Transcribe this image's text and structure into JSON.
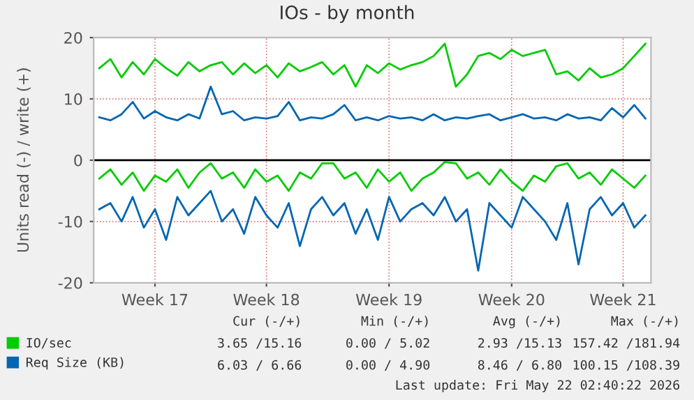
{
  "chart_data": {
    "type": "line",
    "title": "IOs - by month",
    "ylabel": "Units read (-) / write (+)",
    "categories": [
      null,
      null,
      null,
      null,
      null,
      "Week 17",
      null,
      null,
      null,
      null,
      null,
      null,
      null,
      null,
      null,
      "Week 18",
      null,
      null,
      null,
      null,
      null,
      null,
      null,
      null,
      null,
      null,
      "Week 19",
      null,
      null,
      null,
      null,
      null,
      null,
      null,
      null,
      null,
      null,
      "Week 20",
      null,
      null,
      null,
      null,
      null,
      null,
      null,
      null,
      null,
      "Week 21",
      null,
      null
    ],
    "series": [
      {
        "name": "IO/sec",
        "color": "#00cc00",
        "values": [
          15,
          16.5,
          13.5,
          16,
          14,
          16.5,
          15,
          13.8,
          16,
          14.5,
          15.5,
          16,
          14,
          15.8,
          14.2,
          15.5,
          13.5,
          15.8,
          14.5,
          15.2,
          16,
          14,
          15.5,
          12,
          15.5,
          14.2,
          15.8,
          14.8,
          15.5,
          16,
          17,
          19,
          12,
          14,
          17,
          17.5,
          16.5,
          18,
          17,
          17.5,
          18,
          14,
          14.5,
          13,
          15,
          13.5,
          14,
          15,
          17,
          19
        ]
      },
      {
        "color": "#00cc00",
        "values": [
          -3,
          -1.5,
          -4,
          -2,
          -5,
          -2.5,
          -3.5,
          -1.5,
          -4.5,
          -2,
          -0.5,
          -3,
          -2,
          -4.5,
          -1.5,
          -3.5,
          -2.5,
          -5,
          -2,
          -3,
          -0.5,
          -0.5,
          -3,
          -2,
          -4.5,
          -1.5,
          -3.5,
          -2,
          -5,
          -3,
          -2,
          -0.3,
          -0.5,
          -3,
          -2,
          -4,
          -1.5,
          -3.5,
          -5,
          -2.5,
          -3.5,
          -1,
          -0.5,
          -3,
          -2,
          -4,
          -1.5,
          -3,
          -4.5,
          -2.5
        ]
      },
      {
        "name": "Req Size (KB)",
        "color": "#0066b3",
        "values": [
          7,
          6.5,
          7.5,
          9.5,
          6.8,
          8,
          7,
          6.5,
          7.5,
          6.8,
          12,
          7.5,
          8,
          6.5,
          7,
          6.8,
          7.2,
          9.5,
          6.5,
          7,
          6.8,
          7.5,
          9,
          6.5,
          7,
          6.5,
          7.2,
          6.8,
          7,
          6.5,
          7.5,
          6.5,
          7,
          6.8,
          7.2,
          7.5,
          6.5,
          7,
          7.5,
          6.8,
          7,
          6.5,
          7.5,
          6.8,
          7,
          6.5,
          8.5,
          7,
          9,
          6.8
        ]
      },
      {
        "color": "#0066b3",
        "values": [
          -8,
          -7,
          -10,
          -6,
          -11,
          -8,
          -13,
          -6,
          -9,
          -7,
          -5,
          -10,
          -8,
          -12,
          -6,
          -9,
          -11,
          -7,
          -14,
          -8,
          -6,
          -9,
          -7,
          -12,
          -8,
          -13,
          -6,
          -10,
          -8,
          -7,
          -9,
          -6,
          -10,
          -8,
          -18,
          -7,
          -9,
          -11,
          -6,
          -8,
          -10,
          -13,
          -7,
          -17,
          -8,
          -6,
          -9,
          -7,
          -11,
          -9
        ]
      }
    ],
    "ylim": [
      -20,
      20
    ],
    "yticks": [
      -20,
      -10,
      0,
      10,
      20
    ],
    "ref_lines": [
      {
        "axis": "y",
        "value": 0,
        "color": "#000000"
      }
    ],
    "grid": true,
    "legend": "bottom",
    "annotations": [
      "Cur (-/+)",
      "Min (-/+)",
      "Avg (-/+)",
      "Max (-/+)",
      "3.65 /15.16",
      "0.00 / 5.02",
      "2.93 /15.13",
      "157.42 /181.94",
      "6.03 / 6.66",
      "0.00 / 4.90",
      "8.46 / 6.80",
      "100.15 /108.39",
      "Last update: Fri May 22 02:40:22 2026"
    ]
  }
}
